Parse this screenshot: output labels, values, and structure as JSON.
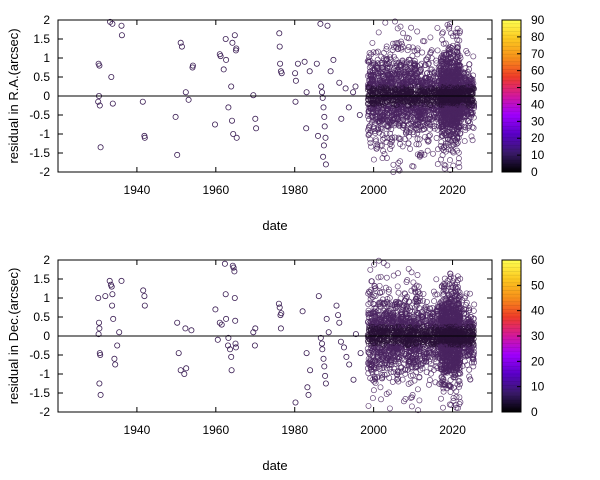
{
  "chart_data": [
    {
      "type": "scatter",
      "xlabel": "date",
      "ylabel": "residual in R.A.(arcsec)",
      "xlim": [
        1920,
        2030
      ],
      "ylim": [
        -2,
        2
      ],
      "xticks": [
        1940,
        1960,
        1980,
        2000,
        2020
      ],
      "yticks": [
        -2,
        -1.5,
        -1,
        -0.5,
        0,
        0.5,
        1,
        1.5,
        2
      ],
      "ytick_labels": [
        "-2",
        "-1.5",
        "-1",
        "-0.5",
        "0",
        "0.5",
        "1",
        "1.5",
        "2"
      ],
      "zero_line": true,
      "marker": "open-circle",
      "colorbar": {
        "min": 0,
        "max": 90,
        "ticks": [
          0,
          10,
          20,
          30,
          40,
          50,
          60,
          70,
          80,
          90
        ],
        "palette": [
          "#000000",
          "#3a1a6a",
          "#5a00c8",
          "#a000ff",
          "#d4189c",
          "#f03c28",
          "#f8901a",
          "#fcc820",
          "#ffff50"
        ]
      },
      "points": [
        [
          1930.3,
          0.85
        ],
        [
          1930.5,
          0.8
        ],
        [
          1930.4,
          0.0
        ],
        [
          1930.6,
          -0.25
        ],
        [
          1930.2,
          -0.15
        ],
        [
          1930.8,
          -1.35
        ],
        [
          1933.2,
          1.95
        ],
        [
          1933.8,
          1.9
        ],
        [
          1933.5,
          0.5
        ],
        [
          1933.9,
          -0.2
        ],
        [
          1936.1,
          1.85
        ],
        [
          1936.2,
          1.6
        ],
        [
          1941.5,
          -0.15
        ],
        [
          1941.9,
          -1.05
        ],
        [
          1942.0,
          -1.1
        ],
        [
          1949.8,
          -0.55
        ],
        [
          1950.2,
          -1.55
        ],
        [
          1951.1,
          1.4
        ],
        [
          1951.4,
          1.3
        ],
        [
          1952.4,
          0.1
        ],
        [
          1953.1,
          -0.1
        ],
        [
          1954.1,
          0.75
        ],
        [
          1954.2,
          0.8
        ],
        [
          1959.8,
          -0.75
        ],
        [
          1961.0,
          1.1
        ],
        [
          1961.2,
          1.05
        ],
        [
          1962.0,
          0.7
        ],
        [
          1962.5,
          1.5
        ],
        [
          1962.6,
          0.95
        ],
        [
          1963.2,
          -0.3
        ],
        [
          1963.9,
          0.25
        ],
        [
          1964.2,
          1.4
        ],
        [
          1964.1,
          -0.65
        ],
        [
          1964.4,
          -1.0
        ],
        [
          1964.8,
          1.6
        ],
        [
          1965.1,
          1.2
        ],
        [
          1965.3,
          -1.1
        ],
        [
          1965.2,
          1.25
        ],
        [
          1969.5,
          0.02
        ],
        [
          1970.0,
          -0.6
        ],
        [
          1970.2,
          -0.85
        ],
        [
          1976.1,
          1.65
        ],
        [
          1976.3,
          0.85
        ],
        [
          1976.5,
          0.65
        ],
        [
          1976.7,
          0.6
        ],
        [
          1976.2,
          1.3
        ],
        [
          1980.1,
          0.6
        ],
        [
          1980.3,
          0.4
        ],
        [
          1980.2,
          -0.15
        ],
        [
          1980.8,
          0.85
        ],
        [
          1982.5,
          0.9
        ],
        [
          1982.9,
          -0.85
        ],
        [
          1983.0,
          0.1
        ],
        [
          1983.8,
          0.65
        ],
        [
          1985.6,
          0.85
        ],
        [
          1985.9,
          -1.05
        ],
        [
          1986.5,
          1.9
        ],
        [
          1986.7,
          0.25
        ],
        [
          1986.9,
          0.1
        ],
        [
          1987.1,
          -0.05
        ],
        [
          1987.3,
          -0.3
        ],
        [
          1987.5,
          -0.55
        ],
        [
          1987.6,
          -0.8
        ],
        [
          1987.8,
          -1.1
        ],
        [
          1987.4,
          -1.3
        ],
        [
          1987.2,
          -1.6
        ],
        [
          1987.9,
          -1.8
        ],
        [
          1988.3,
          1.85
        ],
        [
          1989.1,
          0.65
        ],
        [
          1989.8,
          0.95
        ],
        [
          1991.3,
          0.35
        ],
        [
          1991.8,
          -0.6
        ],
        [
          1992.9,
          0.2
        ],
        [
          1993.7,
          -0.3
        ],
        [
          1994.8,
          0.1
        ],
        [
          1995.4,
          0.25
        ],
        [
          1996.5,
          -0.5
        ]
      ],
      "dense_bands": [
        {
          "x": [
            1998.5,
            2012.0
          ],
          "y_sd": 0.55,
          "y_range": [
            -2,
            2
          ],
          "count": 1100
        },
        {
          "x": [
            2012.0,
            2017.0
          ],
          "y_sd": 0.45,
          "y_range": [
            -1.8,
            1.8
          ],
          "count": 320
        },
        {
          "x": [
            2017.0,
            2022.0
          ],
          "y_sd": 0.55,
          "y_range": [
            -2,
            1.9
          ],
          "count": 1100
        },
        {
          "x": [
            2022.0,
            2025.5
          ],
          "y_sd": 0.35,
          "y_range": [
            -1.2,
            1.2
          ],
          "count": 260
        }
      ],
      "seed": 11
    },
    {
      "type": "scatter",
      "xlabel": "date",
      "ylabel": "residual in Dec.(arcsec)",
      "xlim": [
        1920,
        2030
      ],
      "ylim": [
        -2,
        2
      ],
      "xticks": [
        1940,
        1960,
        1980,
        2000,
        2020
      ],
      "yticks": [
        -2,
        -1.5,
        -1,
        -0.5,
        0,
        0.5,
        1,
        1.5,
        2
      ],
      "ytick_labels": [
        "-2",
        "-1.5",
        "-1",
        "-0.5",
        "0",
        "0.5",
        "1",
        "1.5",
        "2"
      ],
      "zero_line": true,
      "marker": "open-circle",
      "colorbar": {
        "min": 0,
        "max": 60,
        "ticks": [
          0,
          10,
          20,
          30,
          40,
          50,
          60
        ],
        "palette": [
          "#000000",
          "#3a1a6a",
          "#5a00c8",
          "#a000ff",
          "#d4189c",
          "#f03c28",
          "#f8901a",
          "#fcc820",
          "#ffff50"
        ]
      },
      "points": [
        [
          1930.2,
          1.0
        ],
        [
          1930.4,
          0.35
        ],
        [
          1930.5,
          0.2
        ],
        [
          1930.3,
          0.05
        ],
        [
          1930.6,
          -0.45
        ],
        [
          1930.7,
          -0.5
        ],
        [
          1930.5,
          -1.25
        ],
        [
          1930.8,
          -1.55
        ],
        [
          1932.0,
          1.05
        ],
        [
          1933.1,
          1.45
        ],
        [
          1933.4,
          1.35
        ],
        [
          1933.6,
          1.3
        ],
        [
          1933.8,
          1.1
        ],
        [
          1933.7,
          0.8
        ],
        [
          1934.0,
          0.45
        ],
        [
          1934.3,
          -0.6
        ],
        [
          1934.5,
          -0.75
        ],
        [
          1935.0,
          -0.25
        ],
        [
          1935.5,
          0.1
        ],
        [
          1936.1,
          1.45
        ],
        [
          1941.6,
          1.2
        ],
        [
          1941.9,
          1.05
        ],
        [
          1942.0,
          0.8
        ],
        [
          1950.2,
          0.35
        ],
        [
          1950.6,
          -0.45
        ],
        [
          1951.1,
          -0.9
        ],
        [
          1952.0,
          -1.0
        ],
        [
          1952.3,
          0.2
        ],
        [
          1952.5,
          -0.85
        ],
        [
          1953.8,
          0.15
        ],
        [
          1959.9,
          0.7
        ],
        [
          1960.5,
          -0.1
        ],
        [
          1961.0,
          0.35
        ],
        [
          1961.5,
          0.3
        ],
        [
          1962.3,
          1.9
        ],
        [
          1962.5,
          1.1
        ],
        [
          1962.6,
          0.45
        ],
        [
          1963.2,
          -0.05
        ],
        [
          1963.1,
          -0.25
        ],
        [
          1963.6,
          -0.35
        ],
        [
          1963.9,
          -0.55
        ],
        [
          1964.0,
          -0.9
        ],
        [
          1964.3,
          1.85
        ],
        [
          1964.5,
          1.8
        ],
        [
          1964.7,
          1.7
        ],
        [
          1964.8,
          1.0
        ],
        [
          1964.9,
          0.4
        ],
        [
          1965.1,
          -0.3
        ],
        [
          1965.0,
          -0.2
        ],
        [
          1969.5,
          0.1
        ],
        [
          1969.9,
          -0.25
        ],
        [
          1970.0,
          0.2
        ],
        [
          1976.0,
          0.85
        ],
        [
          1976.2,
          0.75
        ],
        [
          1976.4,
          0.55
        ],
        [
          1976.5,
          0.2
        ],
        [
          1976.6,
          0.6
        ],
        [
          1980.2,
          -1.75
        ],
        [
          1982.0,
          0.65
        ],
        [
          1983.0,
          -0.45
        ],
        [
          1983.2,
          -1.35
        ],
        [
          1983.5,
          -1.55
        ],
        [
          1983.9,
          -0.9
        ],
        [
          1986.1,
          1.05
        ],
        [
          1986.6,
          -0.05
        ],
        [
          1986.9,
          -0.2
        ],
        [
          1987.0,
          -0.35
        ],
        [
          1987.3,
          -0.6
        ],
        [
          1987.5,
          -0.8
        ],
        [
          1987.7,
          -1.05
        ],
        [
          1987.9,
          -1.25
        ],
        [
          1988.1,
          0.45
        ],
        [
          1988.6,
          0.1
        ],
        [
          1990.6,
          0.8
        ],
        [
          1991.0,
          0.55
        ],
        [
          1991.3,
          0.35
        ],
        [
          1991.7,
          -0.15
        ],
        [
          1992.5,
          -0.3
        ],
        [
          1993.1,
          -0.55
        ],
        [
          1993.8,
          -0.75
        ],
        [
          1994.9,
          -1.15
        ],
        [
          1995.5,
          0.05
        ],
        [
          1996.7,
          -0.45
        ]
      ],
      "dense_bands": [
        {
          "x": [
            1998.5,
            2012.0
          ],
          "y_sd": 0.55,
          "y_range": [
            -2,
            2
          ],
          "count": 1050
        },
        {
          "x": [
            2012.0,
            2017.0
          ],
          "y_sd": 0.4,
          "y_range": [
            -1.5,
            1.5
          ],
          "count": 300
        },
        {
          "x": [
            2017.0,
            2022.0
          ],
          "y_sd": 0.55,
          "y_range": [
            -1.9,
            1.7
          ],
          "count": 1050
        },
        {
          "x": [
            2022.0,
            2025.5
          ],
          "y_sd": 0.35,
          "y_range": [
            -1.2,
            1.2
          ],
          "count": 240
        }
      ],
      "seed": 29
    }
  ]
}
